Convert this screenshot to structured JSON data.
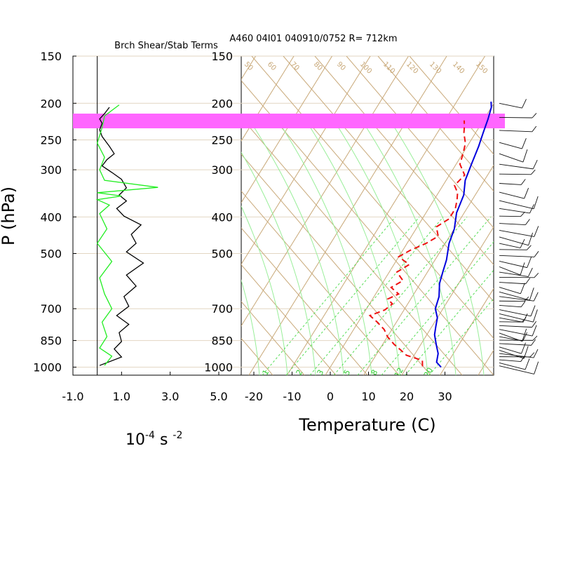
{
  "header": {
    "left_title": "Brch Shear/Stab Terms",
    "right_title": "A460 04I01 040910/0752 R= 712km"
  },
  "axes": {
    "pressure_ticks": [
      "150",
      "200",
      "250",
      "300",
      "400",
      "500",
      "700",
      "850",
      "1000"
    ],
    "pressure_values": [
      150,
      200,
      250,
      300,
      400,
      500,
      700,
      850,
      1000
    ],
    "y_label": "P (hPa)",
    "left_x_ticks": [
      "-1.0",
      "1.0",
      "3.0",
      "5.0"
    ],
    "left_x_values": [
      -1,
      1,
      3,
      5
    ],
    "left_x_label_base": "10",
    "left_x_label_exp1": "-4",
    "left_x_label_mid": " s ",
    "left_x_label_exp2": "-2",
    "temp_ticks": [
      "-20",
      "-10",
      "0",
      "10",
      "20",
      "30"
    ],
    "temp_values": [
      -20,
      -10,
      0,
      10,
      20,
      30
    ],
    "temp_label": "Temperature (C)"
  },
  "colors": {
    "temperature": "#0000dd",
    "dewpoint": "#ee1111",
    "shear_term": "#000000",
    "stab_term": "#22ee22",
    "highlight": "#ff66ff",
    "isopleth": "#c8a878",
    "mixing": "#33cc33"
  },
  "highlight_band_hpa": [
    213,
    233
  ],
  "mixing_labels": {
    "upper": [
      {
        "t": "12",
        "x": 12
      },
      {
        "t": "16",
        "x": 16
      },
      {
        "t": "20",
        "x": 20
      },
      {
        "t": "24",
        "x": 24
      },
      {
        "t": "28",
        "x": 28
      },
      {
        "t": "32",
        "x": 32
      }
    ],
    "lower": [
      "1",
      "2",
      "3",
      "5",
      "8",
      "12",
      "20"
    ]
  },
  "isotherm_labels": [
    "50",
    "60",
    "70",
    "80",
    "90",
    "100",
    "110",
    "120",
    "130",
    "140",
    "150"
  ],
  "chart_data": [
    {
      "type": "line",
      "title": "Brch Shear/Stab Terms",
      "xlabel": "10^-4 s^-2",
      "ylabel": "P (hPa)",
      "xlim": [
        -1,
        5
      ],
      "ylim": [
        1000,
        150
      ],
      "y_scale": "log",
      "series": [
        {
          "points": [
            [
              0.5,
              205
            ],
            [
              0.3,
              213
            ],
            [
              0.1,
              220
            ],
            [
              0.2,
              226
            ],
            [
              0.1,
              235
            ],
            [
              0.2,
              245
            ],
            [
              0.5,
              260
            ],
            [
              0.7,
              272
            ],
            [
              0.4,
              282
            ],
            [
              0.2,
              293
            ],
            [
              0.6,
              305
            ],
            [
              1.0,
              318
            ],
            [
              1.2,
              335
            ],
            [
              0.9,
              350
            ],
            [
              1.2,
              363
            ],
            [
              0.8,
              380
            ],
            [
              1.1,
              398
            ],
            [
              1.8,
              420
            ],
            [
              1.4,
              445
            ],
            [
              1.6,
              470
            ],
            [
              1.2,
              495
            ],
            [
              1.9,
              530
            ],
            [
              1.2,
              570
            ],
            [
              1.6,
              610
            ],
            [
              1.1,
              650
            ],
            [
              1.3,
              690
            ],
            [
              0.8,
              730
            ],
            [
              1.3,
              770
            ],
            [
              0.9,
              810
            ],
            [
              1.0,
              855
            ],
            [
              0.7,
              895
            ],
            [
              1.0,
              940
            ],
            [
              0.1,
              990
            ]
          ]
        },
        {
          "points": [
            [
              0.9,
              202
            ],
            [
              0.3,
              216
            ],
            [
              0.2,
              232
            ],
            [
              0.0,
              255
            ],
            [
              0.3,
              278
            ],
            [
              0.1,
              300
            ],
            [
              0.3,
              320
            ],
            [
              2.5,
              334
            ],
            [
              0.0,
              345
            ],
            [
              1.0,
              352
            ],
            [
              0.0,
              360
            ],
            [
              0.5,
              372
            ],
            [
              0.1,
              392
            ],
            [
              0.4,
              430
            ],
            [
              0.0,
              470
            ],
            [
              0.6,
              525
            ],
            [
              0.1,
              580
            ],
            [
              0.3,
              640
            ],
            [
              0.6,
              700
            ],
            [
              0.2,
              760
            ],
            [
              0.4,
              830
            ],
            [
              0.1,
              890
            ],
            [
              0.6,
              935
            ],
            [
              0.3,
              990
            ]
          ]
        }
      ]
    },
    {
      "type": "line",
      "xlabel": "Temperature (C)",
      "ylabel": "P (hPa)",
      "xlim": [
        -23,
        42
      ],
      "ylim": [
        1000,
        150
      ],
      "y_scale": "log",
      "series": [
        {
          "points": [
            [
              29,
              1000
            ],
            [
              27,
              970
            ],
            [
              26,
              920
            ],
            [
              24,
              870
            ],
            [
              22,
              820
            ],
            [
              21,
              780
            ],
            [
              20,
              740
            ],
            [
              18,
              700
            ],
            [
              17,
              650
            ],
            [
              15,
              600
            ],
            [
              14,
              560
            ],
            [
              13,
              520
            ],
            [
              11,
              470
            ],
            [
              10,
              430
            ],
            [
              8,
              390
            ],
            [
              7,
              350
            ],
            [
              5,
              320
            ],
            [
              4,
              290
            ],
            [
              3,
              260
            ],
            [
              2,
              240
            ],
            [
              1,
              220
            ],
            [
              0,
              205
            ],
            [
              -1,
              198
            ]
          ]
        },
        {
          "points": [
            [
              24,
              995
            ],
            [
              23,
              960
            ],
            [
              18,
              930
            ],
            [
              16,
              905
            ],
            [
              13,
              870
            ],
            [
              10,
              830
            ],
            [
              8,
              795
            ],
            [
              5,
              760
            ],
            [
              2,
              730
            ],
            [
              5,
              705
            ],
            [
              6,
              680
            ],
            [
              4,
              660
            ],
            [
              6,
              640
            ],
            [
              3,
              615
            ],
            [
              5,
              590
            ],
            [
              2,
              560
            ],
            [
              4,
              535
            ],
            [
              0,
              510
            ],
            [
              2,
              490
            ],
            [
              5,
              470
            ],
            [
              7,
              450
            ],
            [
              5,
              425
            ],
            [
              7,
              405
            ],
            [
              7,
              380
            ],
            [
              6,
              360
            ],
            [
              5,
              345
            ],
            [
              3,
              330
            ],
            [
              4,
              310
            ],
            [
              1,
              290
            ],
            [
              0,
              270
            ],
            [
              -1,
              255
            ],
            [
              -3,
              240
            ],
            [
              -4,
              230
            ],
            [
              -5,
              222
            ]
          ]
        }
      ],
      "wind_barbs": "right edge, 200–1000 hPa"
    }
  ]
}
